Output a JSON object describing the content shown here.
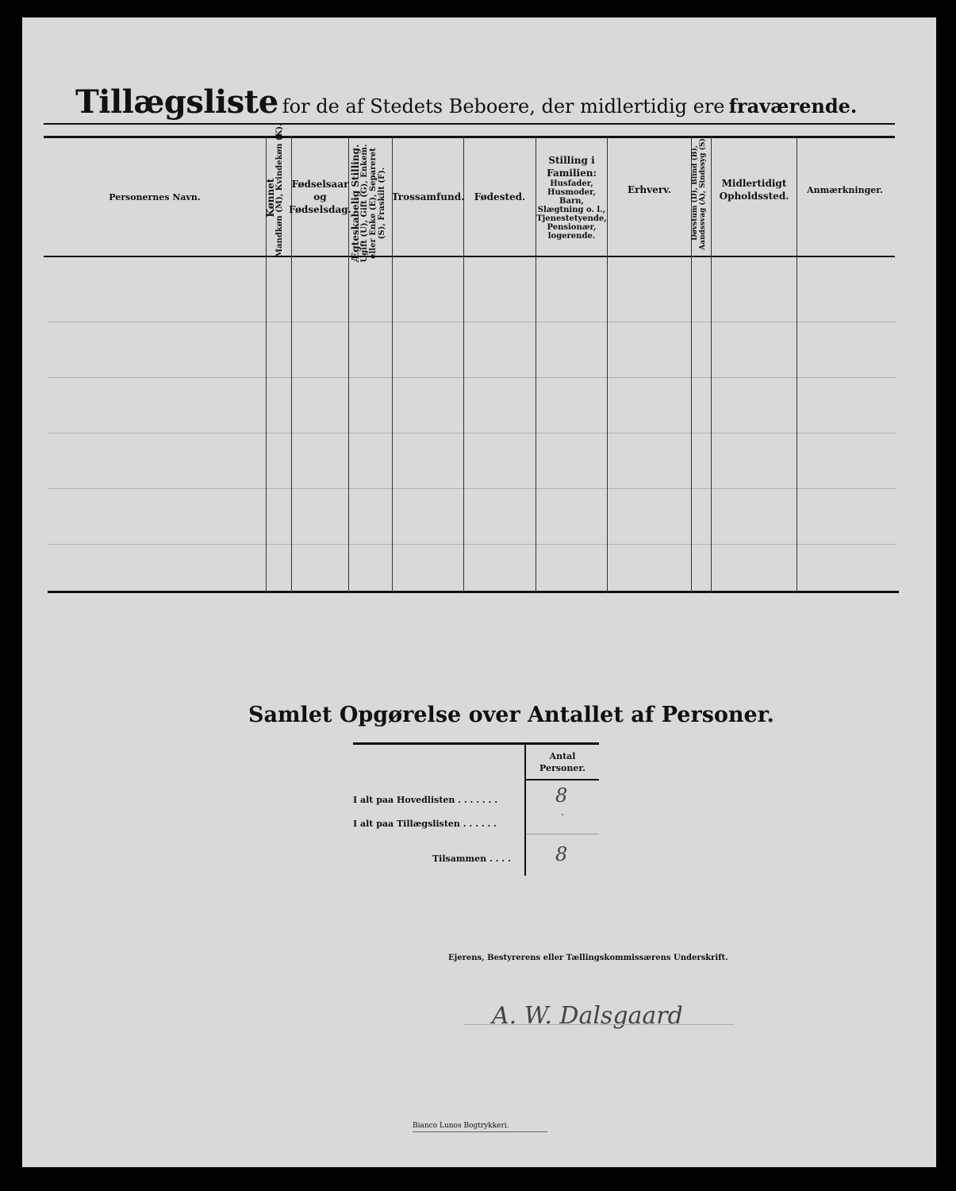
{
  "title": {
    "main": "Tillægsliste",
    "rest": "for de af Stedets Beboere, der midlertidig ere",
    "emphasis": "fraværende."
  },
  "columns": [
    {
      "label": "Personernes Navn."
    },
    {
      "label": "Kønnet",
      "sub": "Mandkøn (M), Kvindekøn (K)."
    },
    {
      "label": "Fødselsaar og Fødselsdag."
    },
    {
      "label": "Ægteskabelig Stilling.",
      "sub": "Ugift (U), Gift (G), Enkem. eller Enke (E), Separeret (S), Fraskilt (F)."
    },
    {
      "label": "Trossamfund."
    },
    {
      "label": "Fødested."
    },
    {
      "label": "Stilling i Familien:",
      "sub": "Husfader, Husmoder, Barn, Slægtning o. l., Tjenestetyende, Pensionær, logerende."
    },
    {
      "label": "Erhverv."
    },
    {
      "label": "Døvstum (D), Blind (B), Aandssvag (A), Sindssyg (S)."
    },
    {
      "label": "Midlertidigt Opholdssted."
    },
    {
      "label": "Anmærkninger."
    }
  ],
  "summary": {
    "title": "Samlet Opgørelse over Antallet af Personer.",
    "column_header": "Antal Personer.",
    "rows": [
      {
        "label": "I alt paa Hovedlisten . . . . . . .",
        "value": "8"
      },
      {
        "label": "I alt paa Tillægslisten . . . . . .",
        "value": "`"
      },
      {
        "label": "Tilsammen . . . .",
        "value": "8"
      }
    ]
  },
  "signature": {
    "caption": "Ejerens, Bestyrerens eller Tællingskommissærens Underskrift.",
    "name": "A. W. Dalsgaard"
  },
  "printer": "Bianco Lunos Bogtrykkeri."
}
